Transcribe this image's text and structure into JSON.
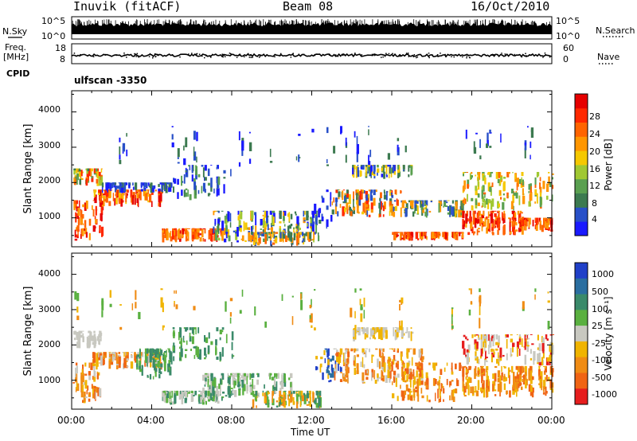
{
  "header": {
    "station": "Inuvik (fitACF)",
    "beam": "Beam 08",
    "date": "16/Oct/2010"
  },
  "status_strips": {
    "nsky_label": "N.Sky",
    "nsky_ticks": [
      "10^5",
      "10^0"
    ],
    "nsearch_label": "N.Search",
    "nsearch_ticks": [
      "10^5",
      "10^0"
    ],
    "freq_label": "Freq.",
    "freq_unit": "[MHz]",
    "freq_ticks": [
      "18",
      "8"
    ],
    "nave_label": "Nave",
    "nave_ticks": [
      "60",
      "0"
    ],
    "cpid_label": "CPID",
    "cpid_value": "ulfscan -3350"
  },
  "chart_data": [
    {
      "type": "heatmap",
      "title": "",
      "xlabel": "",
      "ylabel": "Slant Range [km]",
      "y_ticks": [
        "1000",
        "2000",
        "3000",
        "4000"
      ],
      "ylim": [
        180,
        4600
      ],
      "xlim_hours": [
        0,
        24
      ],
      "colorbar_label": "Power [dB]",
      "colorbar_ticks": [
        "4",
        "8",
        "12",
        "16",
        "20",
        "24",
        "28"
      ],
      "colorbar_colors": [
        "#1a1aff",
        "#2850c8",
        "#3c7a50",
        "#5aa050",
        "#a0c832",
        "#f5c800",
        "#ff9600",
        "#ff6400",
        "#ff2800",
        "#e60000"
      ],
      "grid": false
    },
    {
      "type": "heatmap",
      "title": "",
      "xlabel": "Time UT",
      "ylabel": "Slant Range [km]",
      "y_ticks": [
        "1000",
        "2000",
        "3000",
        "4000"
      ],
      "ylim": [
        180,
        4600
      ],
      "xlim_hours": [
        0,
        24
      ],
      "colorbar_label": "Velocity [m s⁻¹]",
      "colorbar_ticks": [
        "1000",
        "500",
        "100",
        "25",
        "-25",
        "-100",
        "-500",
        "-1000"
      ],
      "colorbar_colors": [
        "#2040c8",
        "#2a6ea0",
        "#3a8a6a",
        "#5ab040",
        "#c8c8c0",
        "#f0b400",
        "#f08c14",
        "#f06414",
        "#e61e1e"
      ],
      "grid": false
    }
  ],
  "time_axis": {
    "ticks": [
      "00:00",
      "04:00",
      "08:00",
      "12:00",
      "16:00",
      "20:00",
      "00:00"
    ],
    "label": "Time UT"
  }
}
